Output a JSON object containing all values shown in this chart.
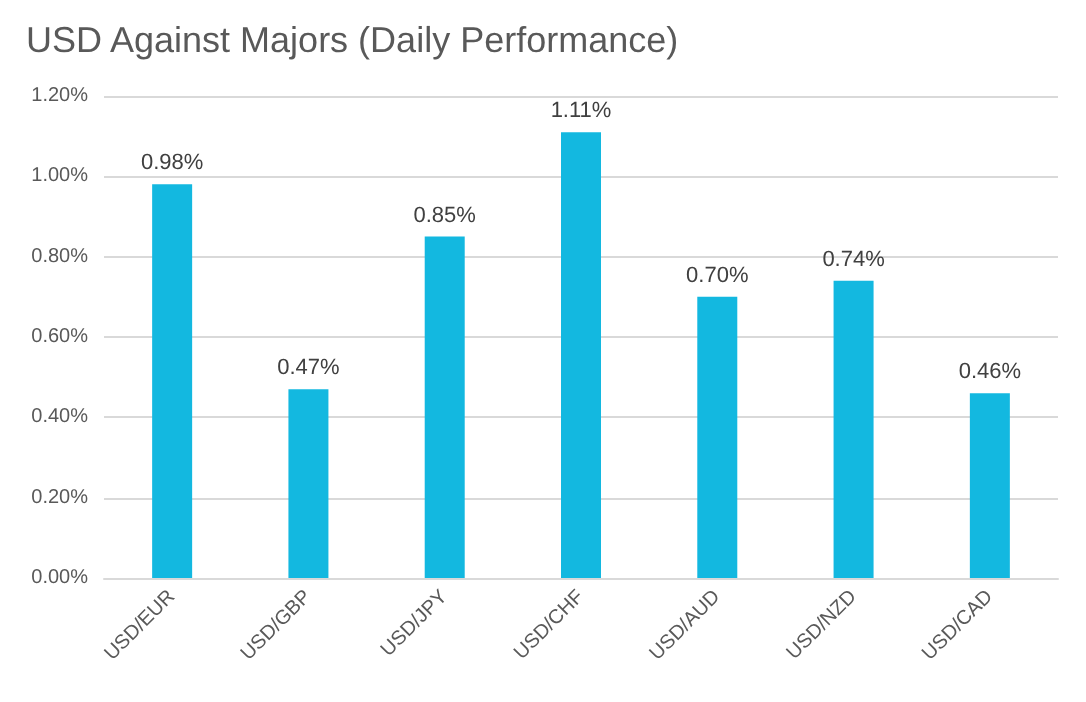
{
  "chart_data": {
    "type": "bar",
    "title": "USD Against Majors (Daily Performance)",
    "categories": [
      "USD/EUR",
      "USD/GBP",
      "USD/JPY",
      "USD/CHF",
      "USD/AUD",
      "USD/NZD",
      "USD/CAD"
    ],
    "values": [
      0.98,
      0.47,
      0.85,
      1.11,
      0.7,
      0.74,
      0.46
    ],
    "value_labels": [
      "0.98%",
      "0.47%",
      "0.85%",
      "1.11%",
      "0.70%",
      "0.74%",
      "0.46%"
    ],
    "color": "#13b8e0",
    "ylim": [
      0,
      1.2
    ],
    "yticks": [
      {
        "value": 0,
        "label": "0.00%"
      },
      {
        "value": 0.2,
        "label": "0.20%"
      },
      {
        "value": 0.4,
        "label": "0.40%"
      },
      {
        "value": 0.6,
        "label": "0.60%"
      },
      {
        "value": 0.8,
        "label": "0.80%"
      },
      {
        "value": 1.0,
        "label": "1.00%"
      },
      {
        "value": 1.2,
        "label": "1.20%"
      }
    ],
    "grid": "y"
  }
}
